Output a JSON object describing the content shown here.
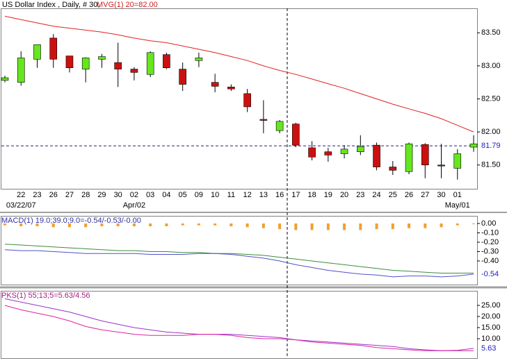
{
  "chart_data": [
    {
      "type": "candlestick",
      "title": "US Dollar Index , Daily, # 30,",
      "categories": [
        null,
        "22",
        "23",
        "26",
        "27",
        "28",
        "29",
        "30",
        "02",
        "03",
        "04",
        "05",
        "09",
        "10",
        "11",
        "12",
        "13",
        "16",
        "17",
        "18",
        "19",
        "20",
        "23",
        "24",
        "25",
        "26",
        "27",
        "30",
        "01",
        null
      ],
      "date_labels": [
        "03/22/07",
        "Apr/02",
        "May/01"
      ],
      "open": [
        82.78,
        82.75,
        83.1,
        83.42,
        83.15,
        82.95,
        83.1,
        83.05,
        82.95,
        82.87,
        83.17,
        82.95,
        83.08,
        82.75,
        82.68,
        82.58,
        82.19,
        82.02,
        82.12,
        81.76,
        81.7,
        81.67,
        81.7,
        81.8,
        81.47,
        81.4,
        81.81,
        81.5,
        81.45,
        81.77
      ],
      "high": [
        82.85,
        83.22,
        83.32,
        83.48,
        83.15,
        83.13,
        83.18,
        83.35,
        82.98,
        83.22,
        83.2,
        83.05,
        83.2,
        82.88,
        82.72,
        82.65,
        82.48,
        82.18,
        82.14,
        81.86,
        81.76,
        81.8,
        81.95,
        81.84,
        81.56,
        81.84,
        81.83,
        81.82,
        81.74,
        81.95
      ],
      "low": [
        82.75,
        82.7,
        82.97,
        82.97,
        82.9,
        82.75,
        82.97,
        82.68,
        82.78,
        82.83,
        82.95,
        82.62,
        82.98,
        82.6,
        82.62,
        82.3,
        81.98,
        81.98,
        81.77,
        81.57,
        81.55,
        81.6,
        81.65,
        81.42,
        81.35,
        81.36,
        81.3,
        81.3,
        81.28,
        81.7
      ],
      "close": [
        82.82,
        83.12,
        83.32,
        83.1,
        82.97,
        83.12,
        83.14,
        82.95,
        82.9,
        83.2,
        82.97,
        82.72,
        83.12,
        82.69,
        82.65,
        82.38,
        82.18,
        82.16,
        81.8,
        81.62,
        81.65,
        81.74,
        81.78,
        81.47,
        81.42,
        81.82,
        81.5,
        81.49,
        81.67,
        81.82
      ],
      "up_color": "#66e61e",
      "down_color": "#cc1010",
      "series": [
        {
          "name": "MVG(1) 20=82.00",
          "color": "#e02020",
          "values": [
            83.75,
            83.7,
            83.65,
            83.6,
            83.57,
            83.54,
            83.51,
            83.47,
            83.42,
            83.38,
            83.35,
            83.3,
            83.25,
            83.2,
            83.14,
            83.08,
            83.0,
            82.93,
            82.87,
            82.8,
            82.73,
            82.66,
            82.58,
            82.5,
            82.42,
            82.35,
            82.28,
            82.2,
            82.1,
            82.0
          ]
        }
      ],
      "ylim": [
        81.14,
        83.87
      ],
      "yticks": [
        {
          "value": 81.5,
          "label": "81.50"
        },
        {
          "value": 82,
          "label": "82.00"
        },
        {
          "value": 82.5,
          "label": "82.50"
        },
        {
          "value": 83,
          "label": "83.00"
        },
        {
          "value": 83.5,
          "label": "83.50"
        }
      ],
      "cursor": {
        "value": 81.79,
        "label": "81.79"
      }
    },
    {
      "type": "macd",
      "title": "MACD(1) 19.0;39.0;9.0=-0.54/-0.53/-0.00",
      "bars": {
        "color": "#f0a030",
        "values": [
          -0.02,
          -0.03,
          -0.03,
          -0.04,
          -0.04,
          -0.04,
          -0.03,
          -0.03,
          -0.03,
          -0.03,
          -0.03,
          -0.02,
          -0.02,
          -0.02,
          -0.03,
          -0.04,
          -0.05,
          -0.06,
          -0.07,
          -0.07,
          -0.07,
          -0.07,
          -0.07,
          -0.06,
          -0.06,
          -0.05,
          -0.05,
          -0.04,
          -0.02,
          0
        ]
      },
      "lines": [
        {
          "color": "#3c8c3c",
          "values": [
            -0.22,
            -0.23,
            -0.24,
            -0.25,
            -0.26,
            -0.27,
            -0.28,
            -0.29,
            -0.29,
            -0.3,
            -0.3,
            -0.31,
            -0.31,
            -0.32,
            -0.32,
            -0.33,
            -0.34,
            -0.36,
            -0.38,
            -0.4,
            -0.42,
            -0.44,
            -0.46,
            -0.48,
            -0.5,
            -0.51,
            -0.52,
            -0.53,
            -0.53,
            -0.53
          ]
        },
        {
          "color": "#5050c8",
          "values": [
            -0.28,
            -0.29,
            -0.29,
            -0.3,
            -0.31,
            -0.32,
            -0.32,
            -0.32,
            -0.32,
            -0.33,
            -0.33,
            -0.33,
            -0.32,
            -0.32,
            -0.33,
            -0.35,
            -0.37,
            -0.4,
            -0.44,
            -0.47,
            -0.5,
            -0.52,
            -0.54,
            -0.55,
            -0.57,
            -0.56,
            -0.56,
            -0.57,
            -0.56,
            -0.54
          ]
        }
      ],
      "ylim": [
        -0.652,
        0.074
      ],
      "yticks": [
        {
          "value": 0,
          "label": "0.00"
        },
        {
          "value": -0.1,
          "label": "-0.10"
        },
        {
          "value": -0.2,
          "label": "-0.20"
        },
        {
          "value": -0.3,
          "label": "-0.30"
        },
        {
          "value": -0.4,
          "label": "-0.40"
        }
      ],
      "cursor": {
        "value": -0.54,
        "label": "-0.54"
      }
    },
    {
      "type": "line",
      "title": "PKS(1) 55;13;5=5.63/4.56",
      "lines": [
        {
          "color": "#9933cc",
          "values": [
            28,
            26.5,
            25,
            23.5,
            22,
            20,
            18,
            16.5,
            15,
            14,
            13,
            12.5,
            12,
            12,
            12,
            11.5,
            11,
            10.5,
            9.5,
            9,
            8.5,
            8,
            7.5,
            7,
            6.5,
            5.5,
            5,
            4.6,
            4.8,
            5.63
          ]
        },
        {
          "color": "#e020a0",
          "values": [
            25,
            23,
            21.5,
            20,
            18,
            15.5,
            14,
            13,
            12,
            11.5,
            11.5,
            11.5,
            12,
            12,
            11.5,
            10.5,
            10,
            10,
            9.5,
            8.5,
            8,
            7.5,
            7,
            6,
            5.5,
            5,
            4.6,
            4.6,
            4.6,
            4.56
          ]
        }
      ],
      "ylim": [
        1.25,
        31.25
      ],
      "yticks": [
        {
          "value": 10,
          "label": "10.00"
        },
        {
          "value": 15,
          "label": "15.00"
        },
        {
          "value": 20,
          "label": "20.00"
        },
        {
          "value": 25,
          "label": "25.00"
        }
      ],
      "cursor": {
        "value": 5.63,
        "label": "5.63"
      }
    }
  ]
}
